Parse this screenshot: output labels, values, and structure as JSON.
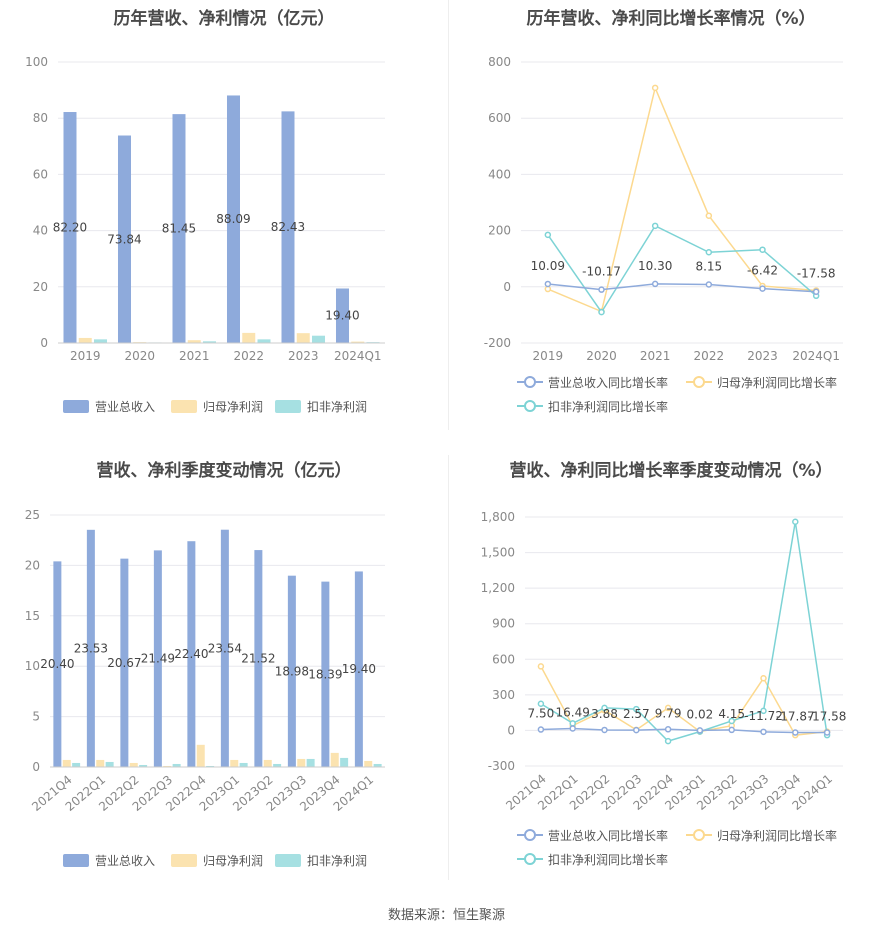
{
  "footer": {
    "source": "数据来源：恒生聚源"
  },
  "legend_names": {
    "bars": [
      "营业总收入",
      "归母净利润",
      "扣非净利润"
    ],
    "lines": [
      "营业总收入同比增长率",
      "归母净利润同比增长率",
      "扣非净利润同比增长率"
    ]
  },
  "colors": {
    "revenue": "#8eaadb",
    "net_profit": "#fbe3b0",
    "deducted_profit": "#a6e0e2",
    "rev_line": "#8eaadb",
    "np_line": "#fcd98f",
    "dp_line": "#7dd3d5"
  },
  "chart_data": [
    {
      "id": "annual-bars",
      "type": "bar",
      "title": "历年营收、净利情况（亿元）",
      "categories": [
        "2019",
        "2020",
        "2021",
        "2022",
        "2023",
        "2024Q1"
      ],
      "ylim": [
        0,
        100
      ],
      "yticks": [
        "0",
        "20",
        "40",
        "60",
        "80",
        "100"
      ],
      "series": [
        {
          "name": "营业总收入",
          "values": [
            82.2,
            73.84,
            81.45,
            88.09,
            82.43,
            19.4
          ],
          "labels": [
            "82.20",
            "73.84",
            "81.45",
            "88.09",
            "82.43",
            "19.40"
          ]
        },
        {
          "name": "归母净利润",
          "values": [
            1.8,
            0.3,
            1.0,
            3.6,
            3.5,
            0.5
          ]
        },
        {
          "name": "扣非净利润",
          "values": [
            1.3,
            0.2,
            0.6,
            1.3,
            2.6,
            0.3
          ]
        }
      ],
      "legend": "bottom",
      "grid": true
    },
    {
      "id": "annual-growth",
      "type": "line",
      "title": "历年营收、净利同比增长率情况（%）",
      "categories": [
        "2019",
        "2020",
        "2021",
        "2022",
        "2023",
        "2024Q1"
      ],
      "ylim": [
        -200,
        800
      ],
      "yticks": [
        "-200",
        "0",
        "200",
        "400",
        "600",
        "800"
      ],
      "series": [
        {
          "name": "营业总收入同比增长率",
          "values": [
            10.09,
            -10.17,
            10.3,
            8.15,
            -6.42,
            -17.58
          ],
          "labels": [
            "10.09",
            "-10.17",
            "10.30",
            "8.15",
            "-6.42",
            "-17.58"
          ]
        },
        {
          "name": "归母净利润同比增长率",
          "values": [
            -8,
            -88,
            708,
            253,
            3,
            -13
          ]
        },
        {
          "name": "扣非净利润同比增长率",
          "values": [
            185,
            -90,
            217,
            123,
            132,
            -32
          ]
        }
      ],
      "legend": "bottom",
      "grid": true
    },
    {
      "id": "quarterly-bars",
      "type": "bar",
      "title": "营收、净利季度变动情况（亿元）",
      "categories": [
        "2021Q4",
        "2022Q1",
        "2022Q2",
        "2022Q3",
        "2022Q4",
        "2023Q1",
        "2023Q2",
        "2023Q3",
        "2023Q4",
        "2024Q1"
      ],
      "ylim": [
        0,
        25
      ],
      "yticks": [
        "0",
        "5",
        "10",
        "15",
        "20",
        "25"
      ],
      "series": [
        {
          "name": "营业总收入",
          "values": [
            20.4,
            23.53,
            20.67,
            21.49,
            22.4,
            23.54,
            21.52,
            18.98,
            18.39,
            19.4
          ],
          "labels": [
            "20.40",
            "23.53",
            "20.67",
            "21.49",
            "22.40",
            "23.54",
            "21.52",
            "18.98",
            "18.39",
            "19.40"
          ]
        },
        {
          "name": "归母净利润",
          "values": [
            0.7,
            0.7,
            0.4,
            0.1,
            2.2,
            0.7,
            0.7,
            0.8,
            1.4,
            0.6
          ]
        },
        {
          "name": "扣非净利润",
          "values": [
            0.4,
            0.5,
            0.2,
            0.3,
            0.1,
            0.4,
            0.3,
            0.8,
            0.9,
            0.3
          ]
        }
      ],
      "legend": "bottom",
      "grid": true
    },
    {
      "id": "quarterly-growth",
      "type": "line",
      "title": "营收、净利同比增长率季度变动情况（%）",
      "categories": [
        "2021Q4",
        "2022Q1",
        "2022Q2",
        "2022Q3",
        "2022Q4",
        "2023Q1",
        "2023Q2",
        "2023Q3",
        "2023Q4",
        "2024Q1"
      ],
      "ylim": [
        -300,
        1800
      ],
      "yticks": [
        "-300",
        "0",
        "300",
        "600",
        "900",
        "1,200",
        "1,500",
        "1,800"
      ],
      "series": [
        {
          "name": "营业总收入同比增长率",
          "values": [
            7.5,
            16.49,
            3.88,
            2.57,
            9.79,
            0.02,
            4.15,
            -11.72,
            -17.87,
            -17.58
          ],
          "labels": [
            "7.50",
            "16.49",
            "3.88",
            "2.57",
            "9.79",
            "0.02",
            "4.15",
            "-11.72",
            "-17.87",
            "-17.58"
          ]
        },
        {
          "name": "归母净利润同比增长率",
          "values": [
            540,
            40,
            170,
            5,
            190,
            -10,
            40,
            440,
            -40,
            -10
          ]
        },
        {
          "name": "扣非净利润同比增长率",
          "values": [
            225,
            60,
            190,
            180,
            -90,
            -10,
            80,
            165,
            1760,
            -40
          ]
        }
      ],
      "legend": "bottom",
      "grid": true
    }
  ]
}
